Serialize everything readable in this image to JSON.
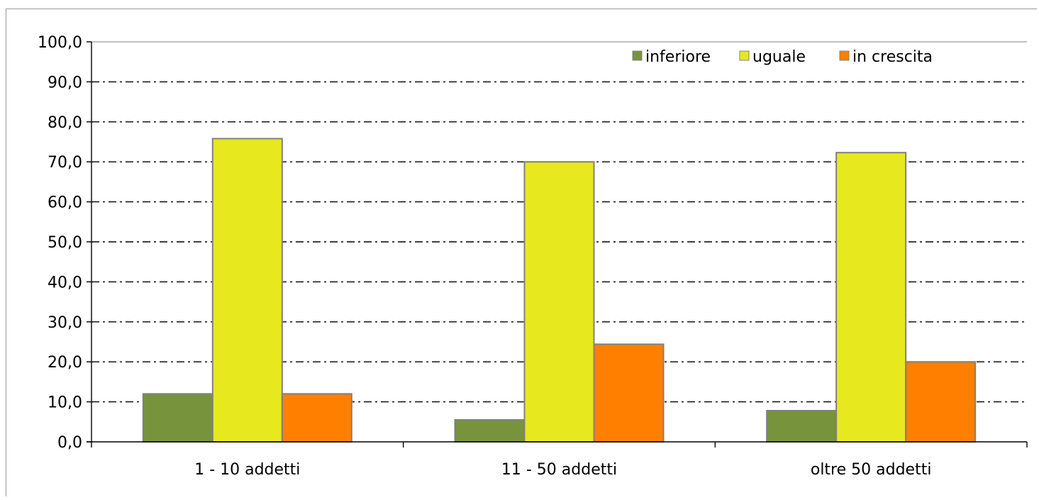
{
  "chart_data": {
    "type": "bar",
    "categories": [
      "1 - 10 addetti",
      "11 - 50 addetti",
      "oltre 50 addetti"
    ],
    "series": [
      {
        "name": "inferiore",
        "color": "#77933C",
        "values": [
          12.0,
          5.5,
          7.8
        ]
      },
      {
        "name": "uguale",
        "color": "#E8E81F",
        "values": [
          75.8,
          70.0,
          72.3
        ]
      },
      {
        "name": "in crescita",
        "color": "#FF7F00",
        "values": [
          12.0,
          24.4,
          20.0
        ]
      }
    ],
    "ylim": [
      0,
      100
    ],
    "ytick_labels": [
      "0,0",
      "10,0",
      "20,0",
      "30,0",
      "40,0",
      "50,0",
      "60,0",
      "70,0",
      "80,0",
      "90,0",
      "100,0"
    ],
    "grid": true,
    "grid_style": "dash-dot",
    "legend_position": "top-right",
    "bar_border_color": "#808080",
    "title": "",
    "xlabel": "",
    "ylabel": ""
  }
}
